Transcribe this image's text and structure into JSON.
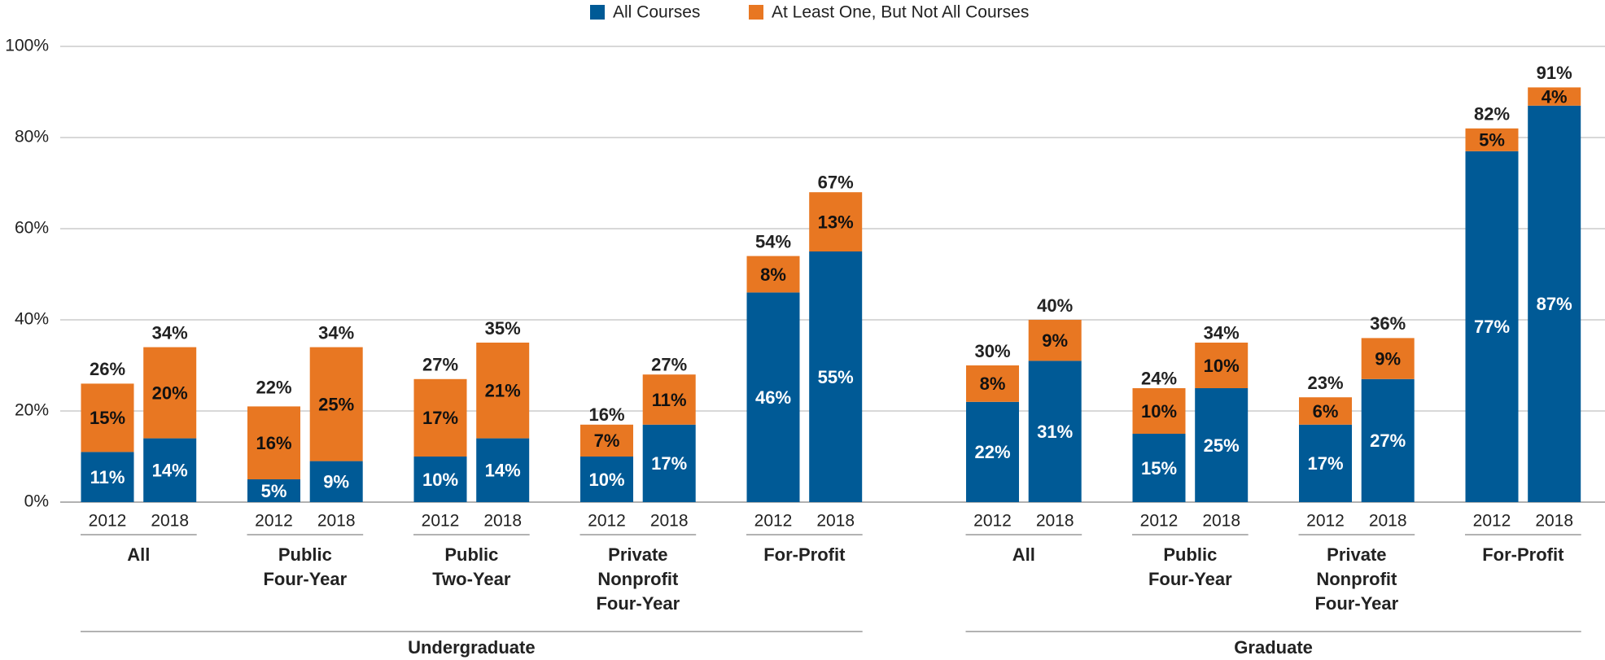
{
  "chart_data": {
    "type": "stacked_bar",
    "categories": [
      "2012",
      "2018",
      "2012",
      "2018",
      "2012",
      "2018",
      "2012",
      "2018",
      "2012",
      "2018",
      "2012",
      "2018",
      "2012",
      "2018",
      "2012",
      "2018",
      "2012",
      "2018"
    ],
    "groups": [
      {
        "name": "Undergraduate",
        "subgroups": [
          [
            "All"
          ],
          [
            "Public",
            "Four-Year"
          ],
          [
            "Public",
            "Two-Year"
          ],
          [
            "Private",
            "Nonprofit",
            "Four-Year"
          ],
          [
            "For-Profit"
          ]
        ]
      },
      {
        "name": "Graduate",
        "subgroups": [
          [
            "All"
          ],
          [
            "Public",
            "Four-Year"
          ],
          [
            "Private",
            "Nonprofit",
            "Four-Year"
          ],
          [
            "For-Profit"
          ]
        ]
      }
    ],
    "series": [
      {
        "name": "All Courses",
        "color": "#005a96",
        "values": [
          11,
          14,
          5,
          9,
          10,
          14,
          10,
          17,
          46,
          55,
          22,
          31,
          15,
          25,
          17,
          27,
          77,
          87
        ],
        "value_labels": [
          "11%",
          "14%",
          "5%",
          "9%",
          "10%",
          "14%",
          "10%",
          "17%",
          "46%",
          "55%",
          "22%",
          "31%",
          "15%",
          "25%",
          "17%",
          "27%",
          "77%",
          "87%"
        ]
      },
      {
        "name": "At Least One, But Not All Courses",
        "color": "#e87722",
        "values": [
          15,
          20,
          16,
          25,
          17,
          21,
          7,
          11,
          8,
          13,
          8,
          9,
          10,
          10,
          6,
          9,
          5,
          4
        ],
        "value_labels": [
          "15%",
          "20%",
          "16%",
          "25%",
          "17%",
          "21%",
          "7%",
          "11%",
          "8%",
          "13%",
          "8%",
          "9%",
          "10%",
          "10%",
          "6%",
          "9%",
          "5%",
          "4%"
        ]
      }
    ],
    "totals": [
      26,
      34,
      22,
      34,
      27,
      35,
      16,
      27,
      54,
      67,
      30,
      40,
      24,
      34,
      23,
      36,
      82,
      91
    ],
    "total_labels": [
      "26%",
      "34%",
      "22%",
      "34%",
      "27%",
      "35%",
      "16%",
      "27%",
      "54%",
      "67%",
      "30%",
      "40%",
      "24%",
      "34%",
      "23%",
      "36%",
      "82%",
      "91%"
    ],
    "ylim": [
      0,
      100
    ],
    "yticks": [
      {
        "value": 0,
        "label": "0%"
      },
      {
        "value": 20,
        "label": "20%"
      },
      {
        "value": 40,
        "label": "40%"
      },
      {
        "value": 60,
        "label": "60%"
      },
      {
        "value": 80,
        "label": "80%"
      },
      {
        "value": 100,
        "label": "100%"
      }
    ],
    "grid": true,
    "legend": "top"
  }
}
